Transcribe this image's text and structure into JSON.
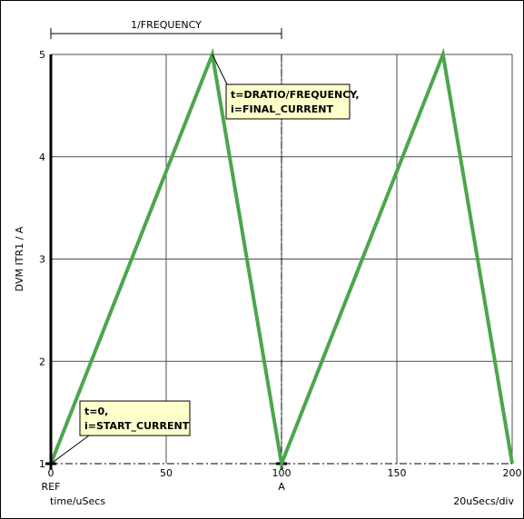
{
  "chart_data": {
    "type": "line",
    "ylabel": "DVM ITR1 / A",
    "xlabel": "time/uSecs",
    "scale_label": "20uSecs/div",
    "xlim": [
      0,
      200
    ],
    "ylim": [
      1,
      5
    ],
    "x_ticks": [
      0,
      50,
      100,
      150,
      200
    ],
    "y_ticks": [
      1,
      2,
      3,
      4,
      5
    ],
    "grid": true,
    "series": [
      {
        "color": "#4ca64c",
        "x": [
          0,
          70,
          100,
          170,
          200
        ],
        "y": [
          1,
          5,
          1,
          5,
          1
        ]
      }
    ],
    "cursors": [
      {
        "label": "REF",
        "x": 0,
        "y": 1
      },
      {
        "label": "A",
        "x": 100,
        "y": 1
      }
    ],
    "dimension": {
      "label": "1/FREQUENCY",
      "x_start": 0,
      "x_end": 100
    },
    "annotations": [
      {
        "line1": "t=DRATIO/FREQUENCY,",
        "line2": "i=FINAL_CURRENT",
        "x": 70,
        "y": 5
      },
      {
        "line1": "t=0,",
        "line2": "i=START_CURRENT",
        "x": 0,
        "y": 1
      }
    ],
    "colors": {
      "grid": "#4d4d4d",
      "trace": "#4ca64c",
      "note_fill": "#ffffcc",
      "axis": "#000000"
    }
  }
}
